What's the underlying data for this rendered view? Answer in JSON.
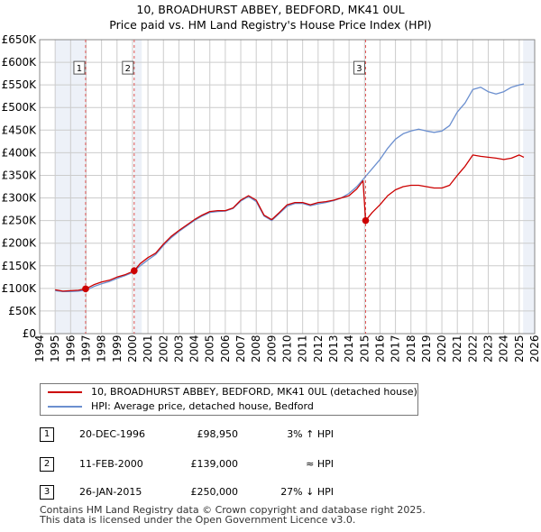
{
  "header": {
    "title_line1": "10, BROADHURST ABBEY, BEDFORD, MK41 0UL",
    "title_line2": "Price paid vs. HM Land Registry's House Price Index (HPI)"
  },
  "chart_data": {
    "type": "line",
    "title": "10, BROADHURST ABBEY, BEDFORD, MK41 0UL",
    "subtitle": "Price paid vs. HM Land Registry's House Price Index (HPI)",
    "xlim": [
      1994,
      2026
    ],
    "ylim": [
      0,
      650000
    ],
    "y_ticks": [
      0,
      50000,
      100000,
      150000,
      200000,
      250000,
      300000,
      350000,
      400000,
      450000,
      500000,
      550000,
      600000,
      650000
    ],
    "y_tick_labels": [
      "£0",
      "£50K",
      "£100K",
      "£150K",
      "£200K",
      "£250K",
      "£300K",
      "£350K",
      "£400K",
      "£450K",
      "£500K",
      "£550K",
      "£600K",
      "£650K"
    ],
    "x_ticks": [
      1994,
      1995,
      1996,
      1997,
      1998,
      1999,
      2000,
      2001,
      2002,
      2003,
      2004,
      2005,
      2006,
      2007,
      2008,
      2009,
      2010,
      2011,
      2012,
      2013,
      2014,
      2015,
      2016,
      2017,
      2018,
      2019,
      2020,
      2021,
      2022,
      2023,
      2024,
      2025,
      2026
    ],
    "x_tick_labels": [
      "1994",
      "1995",
      "1996",
      "1997",
      "1998",
      "1999",
      "2000",
      "2001",
      "2002",
      "2003",
      "2004",
      "2005",
      "2006",
      "2007",
      "2008",
      "2009",
      "2010",
      "2011",
      "2012",
      "2013",
      "2014",
      "2015",
      "2016",
      "2017",
      "2018",
      "2019",
      "2020",
      "2021",
      "2022",
      "2023",
      "2024",
      "2025",
      "2026"
    ],
    "grid": true,
    "shaded_periods": [
      [
        1995.0,
        1996.97
      ],
      [
        2000.11,
        2000.6
      ],
      [
        2025.25,
        2026
      ]
    ],
    "series": [
      {
        "name": "10, BROADHURST ABBEY, BEDFORD, MK41 0UL (detached house)",
        "color": "#cc0000",
        "x": [
          1995.0,
          1995.5,
          1996.0,
          1996.5,
          1996.97,
          1997.5,
          1998.0,
          1998.5,
          1999.0,
          1999.5,
          2000.11,
          2000.5,
          2001.0,
          2001.5,
          2002.0,
          2002.5,
          2003.0,
          2003.5,
          2004.0,
          2004.5,
          2005.0,
          2005.5,
          2006.0,
          2006.5,
          2007.0,
          2007.5,
          2008.0,
          2008.5,
          2009.0,
          2009.5,
          2010.0,
          2010.5,
          2011.0,
          2011.5,
          2012.0,
          2012.5,
          2013.0,
          2013.5,
          2014.0,
          2014.5,
          2014.9,
          2015.07,
          2015.5,
          2016.0,
          2016.5,
          2017.0,
          2017.5,
          2018.0,
          2018.5,
          2019.0,
          2019.5,
          2020.0,
          2020.5,
          2021.0,
          2021.5,
          2022.0,
          2022.5,
          2023.0,
          2023.5,
          2024.0,
          2024.5,
          2025.0,
          2025.3
        ],
        "values": [
          97000,
          94000,
          95000,
          96000,
          98950,
          108000,
          114000,
          118000,
          125000,
          130000,
          139000,
          155000,
          168000,
          178000,
          198000,
          215000,
          228000,
          240000,
          252000,
          262000,
          270000,
          272000,
          272000,
          278000,
          295000,
          305000,
          295000,
          262000,
          252000,
          268000,
          285000,
          290000,
          290000,
          285000,
          290000,
          292000,
          295000,
          300000,
          305000,
          320000,
          338000,
          250000,
          268000,
          285000,
          305000,
          318000,
          325000,
          328000,
          328000,
          325000,
          322000,
          322000,
          328000,
          350000,
          370000,
          395000,
          392000,
          390000,
          388000,
          385000,
          388000,
          395000,
          390000
        ]
      },
      {
        "name": "HPI: Average price, detached house, Bedford",
        "color": "#6b8fcf",
        "x": [
          1995.0,
          1995.5,
          1996.0,
          1996.5,
          1997.0,
          1997.5,
          1998.0,
          1998.5,
          1999.0,
          1999.5,
          2000.0,
          2000.5,
          2001.0,
          2001.5,
          2002.0,
          2002.5,
          2003.0,
          2003.5,
          2004.0,
          2004.5,
          2005.0,
          2005.5,
          2006.0,
          2006.5,
          2007.0,
          2007.5,
          2008.0,
          2008.5,
          2009.0,
          2009.5,
          2010.0,
          2010.5,
          2011.0,
          2011.5,
          2012.0,
          2012.5,
          2013.0,
          2013.5,
          2014.0,
          2014.5,
          2015.0,
          2015.5,
          2016.0,
          2016.5,
          2017.0,
          2017.5,
          2018.0,
          2018.5,
          2019.0,
          2019.5,
          2020.0,
          2020.5,
          2021.0,
          2021.5,
          2022.0,
          2022.5,
          2023.0,
          2023.5,
          2024.0,
          2024.5,
          2025.0,
          2025.3
        ],
        "values": [
          95000,
          93000,
          93000,
          94000,
          96000,
          104000,
          110000,
          115000,
          122000,
          128000,
          135000,
          150000,
          163000,
          175000,
          195000,
          212000,
          226000,
          238000,
          250000,
          260000,
          268000,
          270000,
          271000,
          277000,
          293000,
          303000,
          292000,
          260000,
          250000,
          266000,
          282000,
          288000,
          288000,
          283000,
          287000,
          290000,
          294000,
          300000,
          310000,
          325000,
          345000,
          365000,
          385000,
          410000,
          430000,
          442000,
          448000,
          452000,
          448000,
          445000,
          448000,
          460000,
          490000,
          510000,
          540000,
          545000,
          535000,
          530000,
          535000,
          545000,
          550000,
          552000
        ]
      }
    ],
    "markers": [
      {
        "label": "1",
        "x": 1996.97,
        "y": 98950,
        "flag_y": 580000
      },
      {
        "label": "2",
        "x": 2000.11,
        "y": 139000,
        "flag_y": 580000
      },
      {
        "label": "3",
        "x": 2015.07,
        "y": 250000,
        "flag_y": 580000
      }
    ],
    "legend_position": "bottom"
  },
  "legend": {
    "items": [
      {
        "label": "10, BROADHURST ABBEY, BEDFORD, MK41 0UL (detached house)",
        "color": "#cc0000"
      },
      {
        "label": "HPI: Average price, detached house, Bedford",
        "color": "#6b8fcf"
      }
    ]
  },
  "transactions": [
    {
      "num": "1",
      "date": "20-DEC-1996",
      "price": "£98,950",
      "hpi": "3% ↑ HPI"
    },
    {
      "num": "2",
      "date": "11-FEB-2000",
      "price": "£139,000",
      "hpi": "≈ HPI"
    },
    {
      "num": "3",
      "date": "26-JAN-2015",
      "price": "£250,000",
      "hpi": "27% ↓ HPI"
    }
  ],
  "footer": {
    "line1": "Contains HM Land Registry data © Crown copyright and database right 2025.",
    "line2": "This data is licensed under the Open Government Licence v3.0."
  }
}
